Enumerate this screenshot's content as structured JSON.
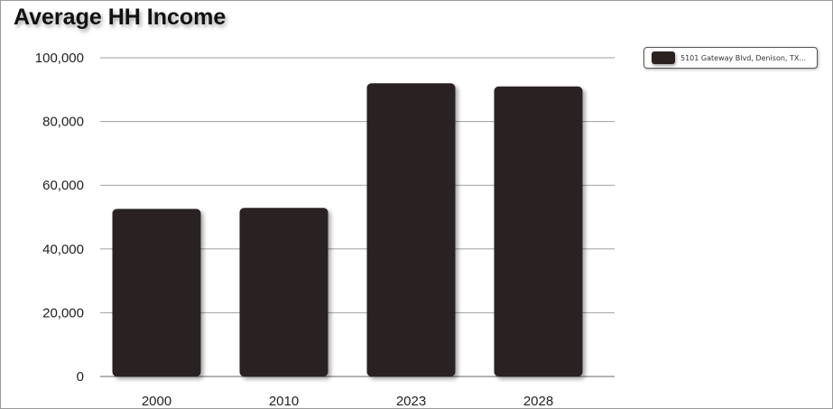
{
  "colors": {
    "bar": "#2b2220",
    "grid": "#9e9e9e",
    "axis": "#666666"
  },
  "legend": {
    "label": "5101 Gateway Blvd, Denison, TX..."
  },
  "chart_data": {
    "type": "bar",
    "title": "Average HH Income",
    "xlabel": "",
    "ylabel": "",
    "categories": [
      "2000",
      "2010",
      "2023",
      "2028"
    ],
    "series": [
      {
        "name": "5101 Gateway Blvd, Denison, TX...",
        "values": [
          52600,
          52900,
          92000,
          91000
        ]
      }
    ],
    "ylim": [
      0,
      100000
    ],
    "yticks": [
      0,
      20000,
      40000,
      60000,
      80000,
      100000
    ],
    "ytick_labels": [
      "0",
      "20,000",
      "40,000",
      "60,000",
      "80,000",
      "100,000"
    ],
    "grid": true,
    "legend_position": "top-right"
  }
}
